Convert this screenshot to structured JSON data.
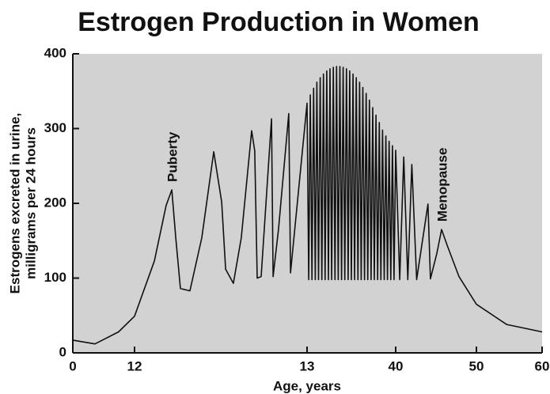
{
  "chart_data": {
    "type": "line",
    "title": "Estrogen Production in Women",
    "xlabel": "Age, years",
    "ylabel": [
      "Estrogens excreted in urine,",
      "milligrams per 24 hours"
    ],
    "annotations": [
      {
        "text": "Puberty",
        "x": 12.216,
        "y": 218
      },
      {
        "text": "Menopause",
        "x": 45.69,
        "y": 165
      }
    ],
    "x": [
      0,
      4.3,
      8.9,
      12,
      12.115,
      12.183,
      12.216,
      12.239,
      12.266,
      12.321,
      12.39,
      12.459,
      12.505,
      12.528,
      12.573,
      12.619,
      12.679,
      12.697,
      12.711,
      12.734,
      12.794,
      12.803,
      12.835,
      12.894,
      12.904,
      13,
      13.5,
      14,
      14.5,
      15,
      15.5,
      16,
      16.5,
      17,
      17.5,
      18,
      18.5,
      19,
      19.5,
      20,
      20.5,
      21,
      21.5,
      22,
      22.5,
      23,
      23.5,
      24,
      24.5,
      25,
      25.5,
      26,
      26.5,
      27,
      27.5,
      28,
      28.5,
      29,
      29.5,
      30,
      30.5,
      31,
      31.5,
      32,
      32.5,
      33,
      33.5,
      34,
      34.5,
      35,
      35.5,
      36,
      36.5,
      37,
      37.5,
      38,
      38.5,
      39,
      39.5,
      40,
      40.5,
      41,
      41.5,
      42,
      42.6,
      44.0,
      44.3,
      45.1,
      45.69,
      46.37,
      47.84,
      50,
      54.6,
      60
    ],
    "values": [
      17,
      12,
      28,
      49,
      123,
      197,
      218,
      154,
      86,
      83,
      154,
      269,
      202,
      112,
      93,
      154,
      297,
      270,
      100,
      102,
      313,
      102,
      166,
      320,
      107,
      334,
      98,
      345,
      98,
      354,
      98,
      362,
      98,
      368,
      98,
      373,
      98,
      377,
      98,
      380,
      98,
      382,
      98,
      383,
      98,
      383,
      98,
      382,
      98,
      380,
      98,
      377,
      98,
      373,
      98,
      368,
      98,
      362,
      98,
      355,
      98,
      347,
      98,
      338,
      98,
      328,
      98,
      318,
      98,
      308,
      98,
      298,
      98,
      290,
      98,
      283,
      98,
      277,
      98,
      271,
      98,
      262,
      98,
      252,
      98,
      199,
      99,
      133,
      165,
      144,
      102,
      65,
      38,
      28
    ],
    "color": "#111111",
    "xlim": [
      0,
      60
    ],
    "xticks": [
      0,
      12,
      13,
      40,
      50,
      60
    ],
    "ylim": [
      0,
      400
    ],
    "yticks": [
      0,
      100,
      200,
      300,
      400
    ]
  }
}
